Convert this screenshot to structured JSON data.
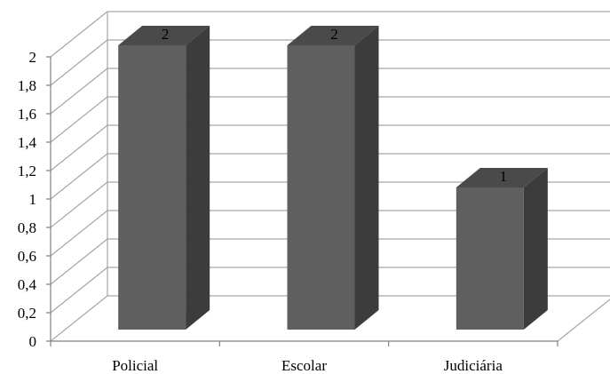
{
  "chart_data": {
    "type": "bar",
    "title": "",
    "xlabel": "",
    "ylabel": "",
    "categories": [
      "Policial",
      "Escolar",
      "Judiciária"
    ],
    "values": [
      2,
      2,
      1
    ],
    "data_labels": [
      "2",
      "2",
      "1"
    ],
    "ylim": [
      0,
      2
    ],
    "yticks": [
      0,
      0.2,
      0.4,
      0.6,
      0.8,
      1,
      1.2,
      1.4,
      1.6,
      1.8,
      2
    ],
    "ytick_labels": [
      "0",
      "0,2",
      "0,4",
      "0,6",
      "0,8",
      "1",
      "1,2",
      "1,4",
      "1,6",
      "1,8",
      "2"
    ],
    "grid": true,
    "legend": "none",
    "style": "3d-column",
    "colors": {
      "bar_front": "#5f5f5f",
      "bar_side": "#3c3c3c",
      "bar_top": "#4a4a4a",
      "gridline": "#a6a6a6",
      "axis": "#808080"
    }
  }
}
